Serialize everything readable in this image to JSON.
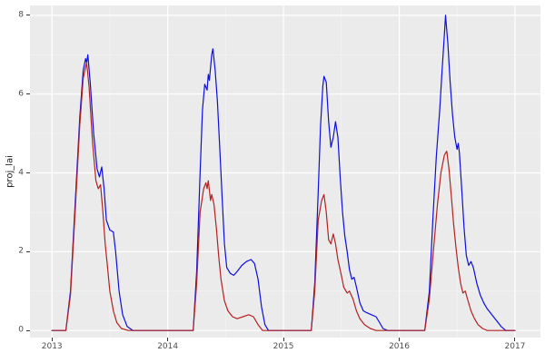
{
  "chart_data": {
    "type": "line",
    "title": "",
    "xlabel": "",
    "ylabel": "proj_lai",
    "xlim": [
      2012.81,
      2017.22
    ],
    "ylim": [
      -0.18,
      8.25
    ],
    "x_ticks": [
      2013,
      2014,
      2015,
      2016,
      2017
    ],
    "y_ticks": [
      0,
      2,
      4,
      6,
      8
    ],
    "x_minor_ticks": [
      2013.5,
      2014.5,
      2015.5,
      2016.5
    ],
    "y_minor_ticks": [
      1,
      3,
      5,
      7
    ],
    "grid": true,
    "legend": "none",
    "panel_bg": "#EBEBEB",
    "grid_major_color": "#FFFFFF",
    "grid_minor_color": "#F4F4F4",
    "axis_text_color": "#4D4D4D",
    "tick_mark_color": "#333333",
    "series": [
      {
        "name": "blue",
        "color": "#0D0DE0",
        "points": [
          [
            2013.0,
            0
          ],
          [
            2013.12,
            0
          ],
          [
            2013.16,
            1.0
          ],
          [
            2013.2,
            3.2
          ],
          [
            2013.24,
            5.4
          ],
          [
            2013.27,
            6.6
          ],
          [
            2013.29,
            6.9
          ],
          [
            2013.3,
            6.8
          ],
          [
            2013.31,
            7.0
          ],
          [
            2013.33,
            6.3
          ],
          [
            2013.36,
            5.0
          ],
          [
            2013.39,
            4.1
          ],
          [
            2013.41,
            3.9
          ],
          [
            2013.43,
            4.15
          ],
          [
            2013.45,
            3.6
          ],
          [
            2013.47,
            2.8
          ],
          [
            2013.5,
            2.55
          ],
          [
            2013.53,
            2.5
          ],
          [
            2013.55,
            2.0
          ],
          [
            2013.58,
            1.0
          ],
          [
            2013.61,
            0.4
          ],
          [
            2013.65,
            0.1
          ],
          [
            2013.7,
            0
          ],
          [
            2014.22,
            0
          ],
          [
            2014.25,
            1.5
          ],
          [
            2014.28,
            4.0
          ],
          [
            2014.3,
            5.6
          ],
          [
            2014.32,
            6.25
          ],
          [
            2014.34,
            6.1
          ],
          [
            2014.35,
            6.5
          ],
          [
            2014.36,
            6.35
          ],
          [
            2014.38,
            7.0
          ],
          [
            2014.39,
            7.15
          ],
          [
            2014.41,
            6.6
          ],
          [
            2014.43,
            5.8
          ],
          [
            2014.45,
            4.6
          ],
          [
            2014.47,
            3.4
          ],
          [
            2014.49,
            2.2
          ],
          [
            2014.51,
            1.6
          ],
          [
            2014.54,
            1.45
          ],
          [
            2014.57,
            1.4
          ],
          [
            2014.6,
            1.5
          ],
          [
            2014.64,
            1.65
          ],
          [
            2014.68,
            1.75
          ],
          [
            2014.72,
            1.8
          ],
          [
            2014.75,
            1.7
          ],
          [
            2014.78,
            1.3
          ],
          [
            2014.81,
            0.6
          ],
          [
            2014.84,
            0.15
          ],
          [
            2014.87,
            0
          ],
          [
            2015.24,
            0
          ],
          [
            2015.27,
            1.2
          ],
          [
            2015.3,
            3.5
          ],
          [
            2015.32,
            5.2
          ],
          [
            2015.34,
            6.2
          ],
          [
            2015.35,
            6.45
          ],
          [
            2015.37,
            6.3
          ],
          [
            2015.39,
            5.3
          ],
          [
            2015.41,
            4.65
          ],
          [
            2015.43,
            4.9
          ],
          [
            2015.45,
            5.3
          ],
          [
            2015.47,
            4.9
          ],
          [
            2015.49,
            3.9
          ],
          [
            2015.51,
            3.0
          ],
          [
            2015.53,
            2.4
          ],
          [
            2015.55,
            2.0
          ],
          [
            2015.57,
            1.55
          ],
          [
            2015.59,
            1.3
          ],
          [
            2015.61,
            1.35
          ],
          [
            2015.63,
            1.1
          ],
          [
            2015.66,
            0.7
          ],
          [
            2015.69,
            0.5
          ],
          [
            2015.72,
            0.45
          ],
          [
            2015.76,
            0.4
          ],
          [
            2015.8,
            0.35
          ],
          [
            2015.83,
            0.2
          ],
          [
            2015.86,
            0.05
          ],
          [
            2015.9,
            0
          ],
          [
            2016.22,
            0
          ],
          [
            2016.26,
            1.0
          ],
          [
            2016.29,
            2.8
          ],
          [
            2016.32,
            4.4
          ],
          [
            2016.35,
            5.6
          ],
          [
            2016.37,
            6.6
          ],
          [
            2016.39,
            7.5
          ],
          [
            2016.4,
            8.0
          ],
          [
            2016.42,
            7.3
          ],
          [
            2016.44,
            6.3
          ],
          [
            2016.46,
            5.5
          ],
          [
            2016.48,
            4.9
          ],
          [
            2016.5,
            4.6
          ],
          [
            2016.51,
            4.75
          ],
          [
            2016.52,
            4.5
          ],
          [
            2016.54,
            3.6
          ],
          [
            2016.56,
            2.6
          ],
          [
            2016.58,
            1.9
          ],
          [
            2016.6,
            1.65
          ],
          [
            2016.62,
            1.75
          ],
          [
            2016.64,
            1.6
          ],
          [
            2016.67,
            1.2
          ],
          [
            2016.7,
            0.9
          ],
          [
            2016.73,
            0.7
          ],
          [
            2016.76,
            0.55
          ],
          [
            2016.8,
            0.4
          ],
          [
            2016.84,
            0.25
          ],
          [
            2016.88,
            0.1
          ],
          [
            2016.92,
            0
          ],
          [
            2017.0,
            0
          ]
        ]
      },
      {
        "name": "red",
        "color": "#B22222",
        "points": [
          [
            2013.0,
            0
          ],
          [
            2013.12,
            0
          ],
          [
            2013.16,
            0.9
          ],
          [
            2013.2,
            3.0
          ],
          [
            2013.24,
            5.2
          ],
          [
            2013.27,
            6.4
          ],
          [
            2013.3,
            6.8
          ],
          [
            2013.32,
            6.2
          ],
          [
            2013.35,
            4.8
          ],
          [
            2013.38,
            3.8
          ],
          [
            2013.4,
            3.6
          ],
          [
            2013.42,
            3.7
          ],
          [
            2013.44,
            3.0
          ],
          [
            2013.46,
            2.2
          ],
          [
            2013.48,
            1.6
          ],
          [
            2013.5,
            1.0
          ],
          [
            2013.53,
            0.5
          ],
          [
            2013.56,
            0.2
          ],
          [
            2013.6,
            0.05
          ],
          [
            2013.66,
            0
          ],
          [
            2014.22,
            0
          ],
          [
            2014.25,
            1.2
          ],
          [
            2014.28,
            3.0
          ],
          [
            2014.31,
            3.6
          ],
          [
            2014.33,
            3.75
          ],
          [
            2014.34,
            3.6
          ],
          [
            2014.35,
            3.8
          ],
          [
            2014.37,
            3.3
          ],
          [
            2014.38,
            3.45
          ],
          [
            2014.4,
            3.2
          ],
          [
            2014.42,
            2.6
          ],
          [
            2014.44,
            1.9
          ],
          [
            2014.46,
            1.3
          ],
          [
            2014.49,
            0.75
          ],
          [
            2014.52,
            0.5
          ],
          [
            2014.56,
            0.35
          ],
          [
            2014.6,
            0.3
          ],
          [
            2014.65,
            0.35
          ],
          [
            2014.7,
            0.4
          ],
          [
            2014.74,
            0.35
          ],
          [
            2014.78,
            0.15
          ],
          [
            2014.82,
            0
          ],
          [
            2015.24,
            0
          ],
          [
            2015.27,
            1.0
          ],
          [
            2015.3,
            2.8
          ],
          [
            2015.33,
            3.3
          ],
          [
            2015.35,
            3.45
          ],
          [
            2015.37,
            3.0
          ],
          [
            2015.39,
            2.3
          ],
          [
            2015.41,
            2.2
          ],
          [
            2015.43,
            2.45
          ],
          [
            2015.45,
            2.2
          ],
          [
            2015.47,
            1.8
          ],
          [
            2015.5,
            1.4
          ],
          [
            2015.52,
            1.1
          ],
          [
            2015.55,
            0.95
          ],
          [
            2015.57,
            1.0
          ],
          [
            2015.6,
            0.8
          ],
          [
            2015.63,
            0.5
          ],
          [
            2015.66,
            0.3
          ],
          [
            2015.7,
            0.15
          ],
          [
            2015.75,
            0.05
          ],
          [
            2015.8,
            0
          ],
          [
            2016.22,
            0
          ],
          [
            2016.26,
            0.8
          ],
          [
            2016.3,
            2.2
          ],
          [
            2016.33,
            3.2
          ],
          [
            2016.36,
            4.0
          ],
          [
            2016.39,
            4.45
          ],
          [
            2016.41,
            4.55
          ],
          [
            2016.43,
            4.1
          ],
          [
            2016.45,
            3.4
          ],
          [
            2016.47,
            2.7
          ],
          [
            2016.49,
            2.1
          ],
          [
            2016.51,
            1.6
          ],
          [
            2016.53,
            1.2
          ],
          [
            2016.55,
            0.95
          ],
          [
            2016.57,
            1.0
          ],
          [
            2016.59,
            0.8
          ],
          [
            2016.62,
            0.5
          ],
          [
            2016.65,
            0.3
          ],
          [
            2016.68,
            0.15
          ],
          [
            2016.72,
            0.05
          ],
          [
            2016.76,
            0
          ],
          [
            2017.0,
            0
          ]
        ]
      }
    ]
  }
}
